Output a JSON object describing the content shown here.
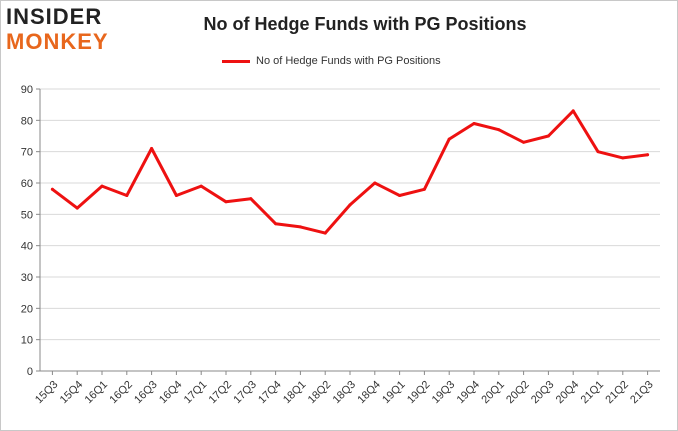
{
  "logo": {
    "top": "INSIDER",
    "bottom": "MONKEY"
  },
  "colors": {
    "series": "#ee1111",
    "grid": "#d9d9d9",
    "axis": "#888888",
    "logo_accent": "#e8671d"
  },
  "chart_data": {
    "type": "line",
    "title": "No of Hedge Funds with PG Positions",
    "xlabel": "",
    "ylabel": "",
    "ylim": [
      0,
      90
    ],
    "yticks": [
      0,
      10,
      20,
      30,
      40,
      50,
      60,
      70,
      80,
      90
    ],
    "grid": true,
    "legend_position": "top-center",
    "categories": [
      "15Q3",
      "15Q4",
      "16Q1",
      "16Q2",
      "16Q3",
      "16Q4",
      "17Q1",
      "17Q2",
      "17Q3",
      "17Q4",
      "18Q1",
      "18Q2",
      "18Q3",
      "18Q4",
      "19Q1",
      "19Q2",
      "19Q3",
      "19Q4",
      "20Q1",
      "20Q2",
      "20Q3",
      "20Q4",
      "21Q1",
      "21Q2",
      "21Q3"
    ],
    "series": [
      {
        "name": "No of Hedge Funds with PG Positions",
        "values": [
          58,
          52,
          59,
          56,
          71,
          56,
          59,
          54,
          55,
          47,
          46,
          44,
          53,
          60,
          56,
          58,
          74,
          79,
          77,
          73,
          75,
          83,
          70,
          68,
          69
        ]
      }
    ]
  }
}
